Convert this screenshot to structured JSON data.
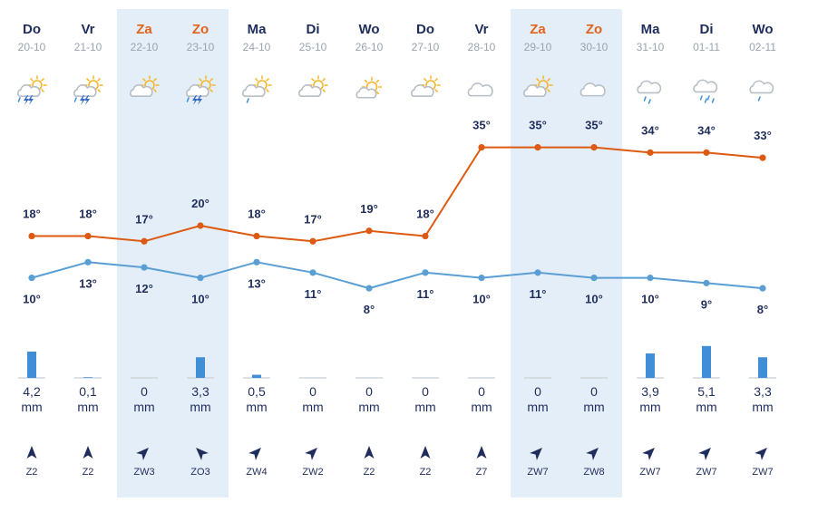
{
  "colors": {
    "weekday": "#1f2d5c",
    "weekend": "#e2631c",
    "weekend_band": "#e3eef8",
    "max_line": "#dd5a12",
    "min_line": "#5a9fd4",
    "precip_bar": "#3f8ed6",
    "precip_base": "#cfd5db",
    "icon_cloud": "#b7bec6",
    "icon_sun": "#f5b62a",
    "icon_rain": "#3f8ed6",
    "icon_bolt": "#2d67c4",
    "wind_arrow": "#1f2d5c"
  },
  "chart_data": {
    "type": "line",
    "title": "",
    "xlabel": "",
    "ylabel": "",
    "categories": [
      "20-10",
      "21-10",
      "22-10",
      "23-10",
      "24-10",
      "25-10",
      "26-10",
      "27-10",
      "28-10",
      "29-10",
      "30-10",
      "31-10",
      "01-11",
      "02-11"
    ],
    "days": [
      {
        "name": "Do",
        "date": "20-10",
        "weekend": false,
        "icon": "thunderstorm-sun-icon",
        "max": "18°",
        "min": "10°",
        "precip": "4,2",
        "unit": "mm",
        "wind": "Z2"
      },
      {
        "name": "Vr",
        "date": "21-10",
        "weekend": false,
        "icon": "thunderstorm-sun-icon",
        "max": "18°",
        "min": "13°",
        "precip": "0,1",
        "unit": "mm",
        "wind": "Z2"
      },
      {
        "name": "Za",
        "date": "22-10",
        "weekend": true,
        "icon": "partly-cloudy-icon",
        "max": "17°",
        "min": "12°",
        "precip": "0",
        "unit": "mm",
        "wind": "ZW3"
      },
      {
        "name": "Zo",
        "date": "23-10",
        "weekend": true,
        "icon": "thunderstorm-sun-icon",
        "max": "20°",
        "min": "10°",
        "precip": "3,3",
        "unit": "mm",
        "wind": "ZO3"
      },
      {
        "name": "Ma",
        "date": "24-10",
        "weekend": false,
        "icon": "sun-cloud-drizzle-icon",
        "max": "18°",
        "min": "13°",
        "precip": "0,5",
        "unit": "mm",
        "wind": "ZW4"
      },
      {
        "name": "Di",
        "date": "25-10",
        "weekend": false,
        "icon": "partly-cloudy-icon",
        "max": "17°",
        "min": "11°",
        "precip": "0",
        "unit": "mm",
        "wind": "ZW2"
      },
      {
        "name": "Wo",
        "date": "26-10",
        "weekend": false,
        "icon": "mostly-sunny-icon",
        "max": "19°",
        "min": "8°",
        "precip": "0",
        "unit": "mm",
        "wind": "Z2"
      },
      {
        "name": "Do",
        "date": "27-10",
        "weekend": false,
        "icon": "partly-cloudy-icon",
        "max": "18°",
        "min": "11°",
        "precip": "0",
        "unit": "mm",
        "wind": "Z2"
      },
      {
        "name": "Vr",
        "date": "28-10",
        "weekend": false,
        "icon": "cloud-icon",
        "max": "35°",
        "min": "10°",
        "precip": "0",
        "unit": "mm",
        "wind": "Z7"
      },
      {
        "name": "Za",
        "date": "29-10",
        "weekend": true,
        "icon": "partly-cloudy-icon",
        "max": "35°",
        "min": "11°",
        "precip": "0",
        "unit": "mm",
        "wind": "ZW7"
      },
      {
        "name": "Zo",
        "date": "30-10",
        "weekend": true,
        "icon": "cloud-icon",
        "max": "35°",
        "min": "10°",
        "precip": "0",
        "unit": "mm",
        "wind": "ZW8"
      },
      {
        "name": "Ma",
        "date": "31-10",
        "weekend": false,
        "icon": "rain-cloud-icon",
        "max": "34°",
        "min": "10°",
        "precip": "3,9",
        "unit": "mm",
        "wind": "ZW7"
      },
      {
        "name": "Di",
        "date": "01-11",
        "weekend": false,
        "icon": "heavy-rain-cloud-icon",
        "max": "34°",
        "min": "9°",
        "precip": "5,1",
        "unit": "mm",
        "wind": "ZW7"
      },
      {
        "name": "Wo",
        "date": "02-11",
        "weekend": false,
        "icon": "drizzle-cloud-icon",
        "max": "33°",
        "min": "8°",
        "precip": "3,3",
        "unit": "mm",
        "wind": "ZW7"
      }
    ],
    "series": [
      {
        "name": "max-temperature",
        "unit": "°C",
        "values": [
          18,
          18,
          17,
          20,
          18,
          17,
          19,
          18,
          35,
          35,
          35,
          34,
          34,
          33
        ]
      },
      {
        "name": "min-temperature",
        "unit": "°C",
        "values": [
          10,
          13,
          12,
          10,
          13,
          11,
          8,
          11,
          10,
          11,
          10,
          10,
          9,
          8
        ]
      },
      {
        "name": "precipitation",
        "unit": "mm",
        "values": [
          4.2,
          0.1,
          0,
          3.3,
          0.5,
          0,
          0,
          0,
          0,
          0,
          0,
          3.9,
          5.1,
          3.3
        ]
      }
    ],
    "wind_direction_from": [
      "Z",
      "Z",
      "ZW",
      "ZO",
      "ZW",
      "ZW",
      "Z",
      "Z",
      "Z",
      "ZW",
      "ZW",
      "ZW",
      "ZW",
      "ZW"
    ],
    "wind_force": [
      2,
      2,
      3,
      3,
      4,
      2,
      2,
      2,
      7,
      7,
      8,
      7,
      7,
      7
    ],
    "temperature_range": [
      0,
      40
    ],
    "precipitation_range": [
      0,
      6
    ]
  }
}
